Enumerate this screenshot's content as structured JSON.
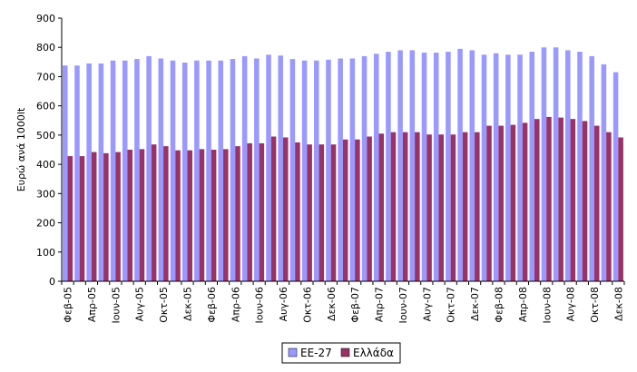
{
  "chart_data": {
    "type": "bar",
    "ylabel": "Ευρώ ανά 1000lt",
    "ylim": [
      0,
      900
    ],
    "yticks": [
      0,
      100,
      200,
      300,
      400,
      500,
      600,
      700,
      800,
      900
    ],
    "grid": false,
    "legend_position": "bottom-center",
    "categories": [
      "Φεβ-05",
      "Μαρ-05",
      "Απρ-05",
      "Μαϊ-05",
      "Ιουν-05",
      "Ιουλ-05",
      "Αυγ-05",
      "Σεπ-05",
      "Οκτ-05",
      "Νοε-05",
      "Δεκ-05",
      "Ιαν-06",
      "Φεβ-06",
      "Μαρ-06",
      "Απρ-06",
      "Μαϊ-06",
      "Ιουν-06",
      "Ιουλ-06",
      "Αυγ-06",
      "Σεπ-06",
      "Οκτ-06",
      "Νοε-06",
      "Δεκ-06",
      "Ιαν-07",
      "Φεβ-07",
      "Μαρ-07",
      "Απρ-07",
      "Μαϊ-07",
      "Ιουν-07",
      "Ιουλ-07",
      "Αυγ-07",
      "Σεπ-07",
      "Οκτ-07",
      "Νοε-07",
      "Δεκ-07",
      "Ιαν-08",
      "Φεβ-08",
      "Μαρ-08",
      "Απρ-08",
      "Μαϊ-08",
      "Ιουν-08",
      "Ιουλ-08",
      "Αυγ-08",
      "Σεπ-08",
      "Οκτ-08",
      "Νοε-08",
      "Δεκ-08"
    ],
    "visible_tick_labels": [
      "Φεβ-05",
      "Απρ-05",
      "Ιουν-05",
      "Αυγ-05",
      "Οκτ-05",
      "Δεκ-05",
      "Φεβ-06",
      "Απρ-06",
      "Ιουν-06",
      "Αυγ-06",
      "Οκτ-06",
      "Δεκ-06",
      "Φεβ-07",
      "Απρ-07",
      "Ιουν-07",
      "Αυγ-07",
      "Οκτ-07",
      "Δεκ-07",
      "Φεβ-08",
      "Απρ-08",
      "Ιουν-08",
      "Αυγ-08",
      "Οκτ-08",
      "Δεκ-08"
    ],
    "series": [
      {
        "name": "ΕΕ-27",
        "color": "#9999ff",
        "values": [
          738,
          738,
          745,
          745,
          755,
          755,
          760,
          770,
          762,
          755,
          748,
          755,
          755,
          755,
          760,
          770,
          762,
          775,
          772,
          760,
          755,
          755,
          758,
          762,
          762,
          770,
          778,
          785,
          790,
          790,
          782,
          782,
          785,
          795,
          790,
          775,
          780,
          775,
          775,
          785,
          800,
          800,
          790,
          785,
          770,
          742,
          715
        ]
      },
      {
        "name": "Ελλάδα",
        "color": "#993366",
        "values": [
          428,
          428,
          442,
          438,
          442,
          450,
          452,
          468,
          462,
          448,
          448,
          452,
          450,
          452,
          462,
          472,
          472,
          495,
          492,
          475,
          468,
          468,
          468,
          485,
          485,
          495,
          505,
          510,
          510,
          510,
          502,
          502,
          502,
          510,
          510,
          532,
          532,
          535,
          542,
          555,
          562,
          560,
          555,
          548,
          532,
          510,
          492
        ]
      }
    ]
  }
}
